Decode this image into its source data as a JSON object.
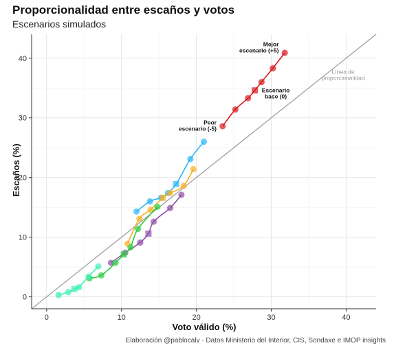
{
  "chart_data": {
    "type": "line",
    "title": "Proporcionalidad entre escaños y votos",
    "subtitle": "Escenarios simulados",
    "xlabel": "Voto válido (%)",
    "ylabel": "Escaños (%)",
    "xlim": [
      -2,
      44
    ],
    "ylim": [
      -2,
      44
    ],
    "xticks": [
      0,
      10,
      20,
      30,
      40
    ],
    "yticks": [
      0,
      10,
      20,
      30,
      40
    ],
    "grid": true,
    "caption": "Elaboración @pablocalv · Datos Ministerio del Interior, CIS, Sondaxe e IMOP insights",
    "reference_line": {
      "slope": 1,
      "intercept": 0,
      "color": "#a0a0a0",
      "label": [
        "Línea de",
        "proporcionalidad"
      ]
    },
    "series": [
      {
        "color": "#d7191c",
        "x": [
          23.5,
          25.2,
          26.9,
          27.8,
          28.7,
          30.2,
          31.8
        ],
        "y": [
          28.6,
          31.4,
          33.3,
          34.6,
          36.0,
          38.3,
          40.9
        ],
        "base_index": 3
      },
      {
        "color": "#29b6f6",
        "x": [
          12.0,
          13.8,
          15.3,
          16.2,
          17.3,
          19.2,
          21.0
        ],
        "y": [
          14.3,
          16.0,
          16.6,
          17.4,
          18.9,
          23.1,
          26.0
        ],
        "base_index": 4
      },
      {
        "color": "#f6b026",
        "x": [
          10.8,
          12.4,
          13.9,
          15.5,
          16.5,
          18.3,
          19.6
        ],
        "y": [
          8.9,
          13.1,
          14.6,
          16.6,
          17.4,
          18.6,
          21.4
        ],
        "base_index": 3
      },
      {
        "color": "#8e4fa8",
        "x": [
          8.6,
          10.5,
          12.5,
          13.6,
          14.3,
          16.5,
          18.0
        ],
        "y": [
          5.7,
          7.4,
          9.1,
          10.6,
          12.6,
          14.9,
          17.1
        ],
        "base_index": 3
      },
      {
        "color": "#2ecc40",
        "x": [
          5.7,
          7.3,
          9.2,
          10.3,
          11.2,
          12.2,
          14.8
        ],
        "y": [
          3.1,
          3.6,
          5.7,
          7.1,
          8.3,
          11.4,
          15.1
        ],
        "base_index": 3
      },
      {
        "color": "#3ef0b4",
        "x": [
          1.6,
          2.9,
          3.7,
          4.3,
          5.6,
          6.9
        ],
        "y": [
          0.3,
          0.8,
          1.3,
          1.6,
          3.4,
          5.1
        ],
        "base_index": 2
      }
    ],
    "annotations": [
      {
        "lines": [
          "Mejor",
          "escenario (+5)"
        ],
        "x": 31.0,
        "y": 42.0,
        "anchor": "end"
      },
      {
        "lines": [
          "Peor",
          "escenario (-5)"
        ],
        "x": 22.7,
        "y": 28.9,
        "anchor": "end"
      },
      {
        "lines": [
          "Escenario",
          "base (0)"
        ],
        "x": 30.6,
        "y": 34.3,
        "anchor": "middle"
      }
    ]
  }
}
